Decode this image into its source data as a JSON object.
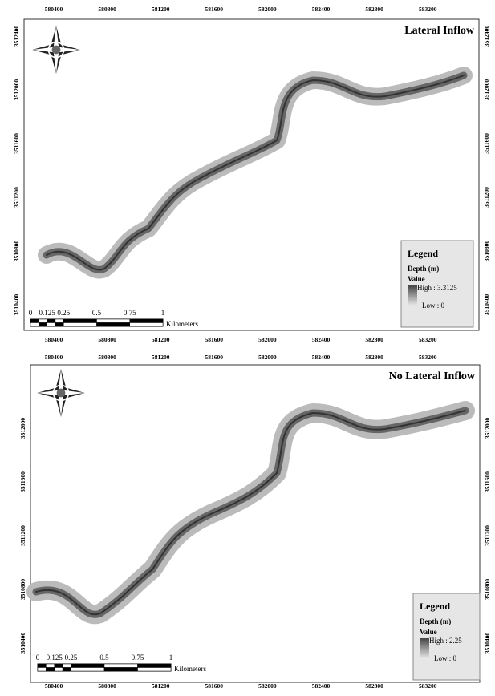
{
  "panels": [
    {
      "title": "Lateral Inflow",
      "x_ticks_top": [
        580400,
        580800,
        581200,
        581600,
        582000,
        582400,
        582800,
        583200
      ],
      "x_ticks_bottom": [
        580400,
        580800,
        581200,
        581600,
        582000,
        582400,
        582800,
        583200
      ],
      "y_ticks_left": [
        3512400,
        3512000,
        3511600,
        3511200,
        3510800,
        3510400
      ],
      "y_ticks_right": [
        3512400,
        3512000,
        3511600,
        3511200,
        3510800,
        3510400
      ],
      "legend": {
        "title": "Legend",
        "field": "Depth (m)",
        "value": "Value",
        "high": "High : 3.3125",
        "low": "Low : 0"
      },
      "scale": {
        "labels": [
          "0",
          "0.125",
          "0.25",
          "0.5",
          "0.75",
          "1"
        ],
        "unit": "Kilometers"
      }
    },
    {
      "title": "No Lateral Inflow",
      "x_ticks_top": [
        580400,
        580800,
        581200,
        581600,
        582000,
        582400,
        582800,
        583200
      ],
      "x_ticks_bottom": [
        580400,
        580800,
        581200,
        581600,
        582000,
        582400,
        582800,
        583200
      ],
      "y_ticks_left": [
        3512000,
        3511600,
        3511200,
        3510800,
        3510400
      ],
      "y_ticks_right": [
        3512000,
        3511600,
        3511200,
        3510800,
        3510400
      ],
      "legend": {
        "title": "Legend",
        "field": "Depth (m)",
        "value": "Value",
        "high": "High : 2.25",
        "low": "Low : 0"
      },
      "scale": {
        "labels": [
          "0",
          "0.125",
          "0.25",
          "0.5",
          "0.75",
          "1"
        ],
        "unit": "Kilometers"
      }
    }
  ]
}
